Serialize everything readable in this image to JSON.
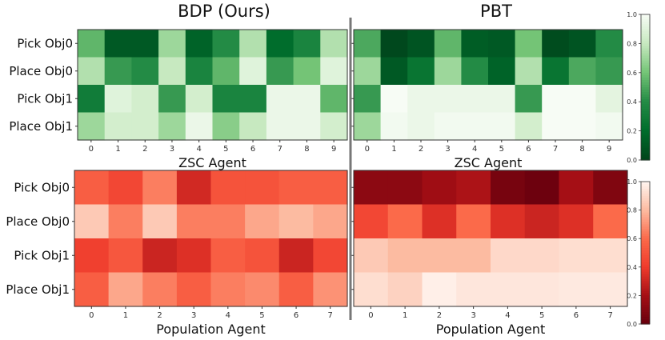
{
  "titles": {
    "left": "BDP (Ours)",
    "right": "PBT"
  },
  "chart_data": [
    {
      "type": "heatmap",
      "title": "BDP (Ours)",
      "xlabel": "ZSC Agent",
      "x": [
        "0",
        "1",
        "2",
        "3",
        "4",
        "5",
        "6",
        "7",
        "8",
        "9"
      ],
      "y": [
        "Pick Obj0",
        "Place Obj0",
        "Pick Obj1",
        "Place Obj1"
      ],
      "colormap": "Greens",
      "vlim": [
        0,
        1
      ],
      "values": [
        [
          0.55,
          0.1,
          0.1,
          0.7,
          0.15,
          0.4,
          0.75,
          0.2,
          0.35,
          0.75
        ],
        [
          0.75,
          0.45,
          0.4,
          0.8,
          0.35,
          0.55,
          0.9,
          0.45,
          0.6,
          0.9
        ],
        [
          0.3,
          0.9,
          0.85,
          0.45,
          0.85,
          0.35,
          0.35,
          0.95,
          0.95,
          0.55
        ],
        [
          0.7,
          0.85,
          0.85,
          0.7,
          0.95,
          0.65,
          0.8,
          0.95,
          0.95,
          0.85
        ]
      ]
    },
    {
      "type": "heatmap",
      "title": "PBT",
      "xlabel": "ZSC Agent",
      "x": [
        "0",
        "1",
        "2",
        "3",
        "4",
        "5",
        "6",
        "7",
        "8",
        "9"
      ],
      "y": [
        "Pick Obj0",
        "Place Obj0",
        "Pick Obj1",
        "Place Obj1"
      ],
      "colormap": "Greens",
      "vlim": [
        0,
        1
      ],
      "values": [
        [
          0.5,
          0.02,
          0.08,
          0.55,
          0.12,
          0.1,
          0.6,
          0.04,
          0.08,
          0.4
        ],
        [
          0.7,
          0.1,
          0.25,
          0.7,
          0.4,
          0.15,
          0.75,
          0.25,
          0.5,
          0.45
        ],
        [
          0.45,
          1.0,
          0.95,
          0.95,
          0.95,
          0.95,
          0.45,
          1.0,
          1.0,
          0.92
        ],
        [
          0.7,
          0.98,
          0.95,
          0.98,
          0.98,
          0.98,
          0.85,
          1.0,
          1.0,
          0.98
        ]
      ]
    },
    {
      "type": "heatmap",
      "xlabel": "Population Agent",
      "x": [
        "0",
        "1",
        "2",
        "3",
        "4",
        "5",
        "6",
        "7"
      ],
      "y": [
        "Pick Obj0",
        "Place Obj0",
        "Pick Obj1",
        "Place Obj1"
      ],
      "colormap": "Reds_r",
      "vlim": [
        0,
        1
      ],
      "values": [
        [
          0.55,
          0.45,
          0.65,
          0.32,
          0.5,
          0.5,
          0.55,
          0.55
        ],
        [
          0.85,
          0.65,
          0.85,
          0.65,
          0.65,
          0.75,
          0.8,
          0.75
        ],
        [
          0.42,
          0.52,
          0.3,
          0.35,
          0.55,
          0.5,
          0.3,
          0.45
        ],
        [
          0.55,
          0.75,
          0.65,
          0.55,
          0.65,
          0.68,
          0.55,
          0.7
        ]
      ]
    },
    {
      "type": "heatmap",
      "xlabel": "Population Agent",
      "x": [
        "0",
        "1",
        "2",
        "3",
        "4",
        "5",
        "6",
        "7"
      ],
      "y": [
        "Pick Obj0",
        "Place Obj0",
        "Pick Obj1",
        "Place Obj1"
      ],
      "colormap": "Reds_r",
      "vlim": [
        0,
        1
      ],
      "values": [
        [
          0.12,
          0.12,
          0.18,
          0.22,
          0.05,
          0.02,
          0.2,
          0.08
        ],
        [
          0.45,
          0.6,
          0.35,
          0.6,
          0.35,
          0.3,
          0.35,
          0.6
        ],
        [
          0.85,
          0.8,
          0.8,
          0.8,
          0.9,
          0.9,
          0.92,
          0.92
        ],
        [
          0.92,
          0.88,
          0.98,
          0.95,
          0.95,
          0.95,
          0.96,
          0.96
        ]
      ]
    }
  ],
  "colorbars": [
    {
      "colormap": "Greens",
      "ticks": [
        "0.0",
        "0.2",
        "0.4",
        "0.6",
        "0.8",
        "1.0"
      ]
    },
    {
      "colormap": "Reds_r",
      "ticks": [
        "0.0",
        "0.2",
        "0.4",
        "0.6",
        "0.8",
        "1.0"
      ]
    }
  ]
}
